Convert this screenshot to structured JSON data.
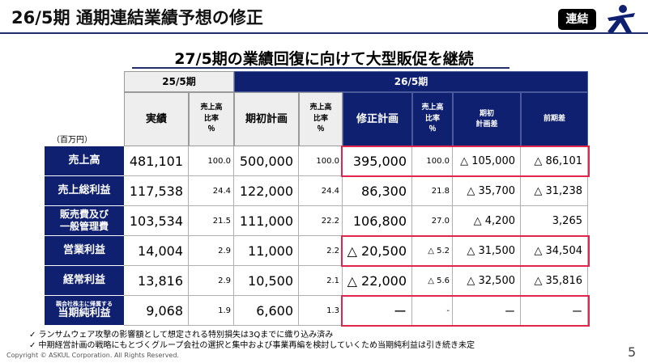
{
  "header": {
    "title": "26/5期 通期連結業績予想の修正",
    "badge": "連結",
    "subtitle": "27/5期の業績回復に向けて大型販促を継続"
  },
  "table": {
    "period_prev": "25/5期",
    "period_curr": "26/5期",
    "unit": "（百万円）",
    "col_actual": "実績",
    "col_ratio_l1": "売上高",
    "col_ratio_l2": "比率",
    "col_ratio_l3": "％",
    "col_initial": "期初計画",
    "col_revised": "修正計画",
    "col_diff_initial_l1": "期初",
    "col_diff_initial_l2": "計画差",
    "col_diff_prev": "前期差",
    "rows": [
      {
        "label": "売上高",
        "label2": "",
        "note": "",
        "actual": "481,101",
        "actual_ratio": "100.0",
        "initial": "500,000",
        "initial_ratio": "100.0",
        "revised": "395,000",
        "revised_ratio": "100.0",
        "diff_initial": "△ 105,000",
        "diff_prev": "△ 86,101"
      },
      {
        "label": "売上総利益",
        "label2": "",
        "note": "",
        "actual": "117,538",
        "actual_ratio": "24.4",
        "initial": "122,000",
        "initial_ratio": "24.4",
        "revised": "86,300",
        "revised_ratio": "21.8",
        "diff_initial": "△ 35,700",
        "diff_prev": "△ 31,238"
      },
      {
        "label": "販売費及び",
        "label2": "一般管理費",
        "note": "",
        "actual": "103,534",
        "actual_ratio": "21.5",
        "initial": "111,000",
        "initial_ratio": "22.2",
        "revised": "106,800",
        "revised_ratio": "27.0",
        "diff_initial": "△ 4,200",
        "diff_prev": "3,265"
      },
      {
        "label": "営業利益",
        "label2": "",
        "note": "",
        "actual": "14,004",
        "actual_ratio": "2.9",
        "initial": "11,000",
        "initial_ratio": "2.2",
        "revised": "△ 20,500",
        "revised_ratio": "△ 5.2",
        "diff_initial": "△ 31,500",
        "diff_prev": "△ 34,504"
      },
      {
        "label": "経常利益",
        "label2": "",
        "note": "",
        "actual": "13,816",
        "actual_ratio": "2.9",
        "initial": "10,500",
        "initial_ratio": "2.1",
        "revised": "△ 22,000",
        "revised_ratio": "△ 5.6",
        "diff_initial": "△ 32,500",
        "diff_prev": "△ 35,816"
      },
      {
        "label": "当期純利益",
        "label2": "",
        "note": "親会社株主に帰属する",
        "actual": "9,068",
        "actual_ratio": "1.9",
        "initial": "6,600",
        "initial_ratio": "1.3",
        "revised": "ー",
        "revised_ratio": "-",
        "diff_initial": "ー",
        "diff_prev": "ー"
      }
    ]
  },
  "notes": [
    "✓  ランサムウェア攻撃の影響額として想定される特別損失は3Qまでに織り込み済み",
    "✓  中期経営計画の戦略にもとづくグループ会社の選択と集中および事業再編を検討していくため当期純利益は引き続き未定"
  ],
  "footer": {
    "copyright": "Copyright © ASKUL Corporation. All Rights Reserved.",
    "page": "5"
  },
  "colors": {
    "navy": "#0f2070",
    "highlight": "#e0264a"
  },
  "icons": {
    "logo": "askul-runner-logo"
  }
}
